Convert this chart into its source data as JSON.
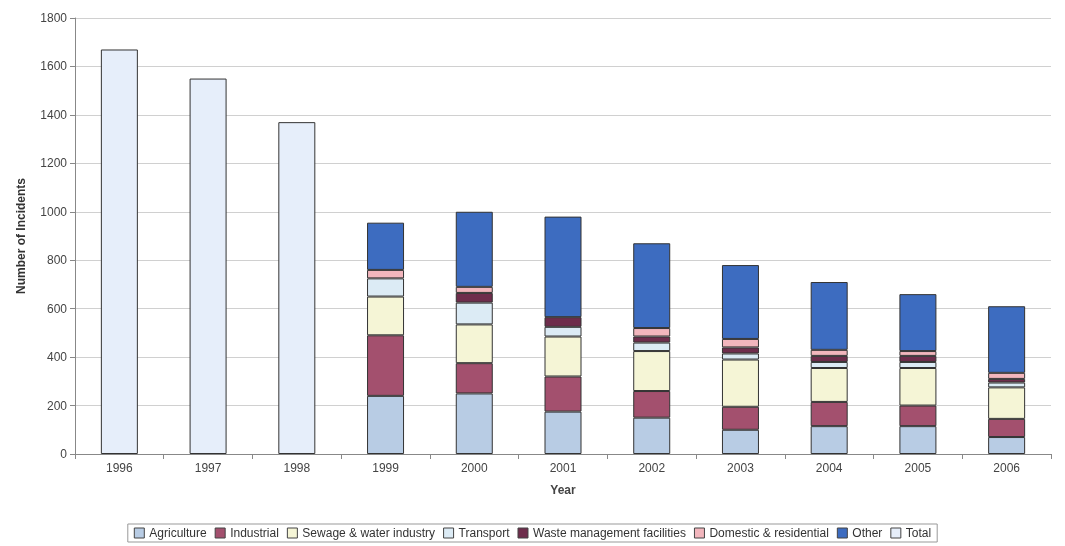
{
  "chart_data": {
    "type": "bar",
    "stacked": true,
    "xlabel": "Year",
    "ylabel": "Number of Incidents",
    "categories": [
      "1996",
      "1997",
      "1998",
      "1999",
      "2000",
      "2001",
      "2002",
      "2003",
      "2004",
      "2005",
      "2006"
    ],
    "series": [
      {
        "name": "Agriculture",
        "color": "#b8cce4",
        "values": [
          null,
          null,
          null,
          240,
          250,
          175,
          150,
          100,
          115,
          115,
          70
        ]
      },
      {
        "name": "Industrial",
        "color": "#a3506e",
        "values": [
          null,
          null,
          null,
          250,
          125,
          145,
          110,
          95,
          100,
          85,
          75
        ]
      },
      {
        "name": "Sewage & water industry",
        "color": "#f5f5d6",
        "values": [
          null,
          null,
          null,
          160,
          160,
          165,
          165,
          195,
          140,
          155,
          130
        ]
      },
      {
        "name": "Transport",
        "color": "#dcebf5",
        "values": [
          null,
          null,
          null,
          75,
          90,
          40,
          35,
          25,
          25,
          25,
          20
        ]
      },
      {
        "name": "Waste management facilities",
        "color": "#6e2d4c",
        "values": [
          null,
          null,
          null,
          null,
          40,
          40,
          25,
          25,
          25,
          25,
          15
        ]
      },
      {
        "name": "Domestic & residential",
        "color": "#f2b6bd",
        "values": [
          null,
          null,
          null,
          35,
          25,
          null,
          35,
          35,
          25,
          20,
          25
        ]
      },
      {
        "name": "Other",
        "color": "#3d6cc0",
        "values": [
          null,
          null,
          null,
          195,
          310,
          415,
          350,
          305,
          280,
          235,
          275
        ]
      },
      {
        "name": "Total",
        "color": "#e6eefa",
        "values": [
          1670,
          1550,
          1370,
          null,
          null,
          null,
          null,
          null,
          null,
          null,
          null
        ]
      }
    ],
    "ylim": [
      0,
      1800
    ],
    "yticks": [
      0,
      200,
      400,
      600,
      800,
      1000,
      1200,
      1400,
      1600,
      1800
    ],
    "grid": "y",
    "legend": "bottom"
  }
}
